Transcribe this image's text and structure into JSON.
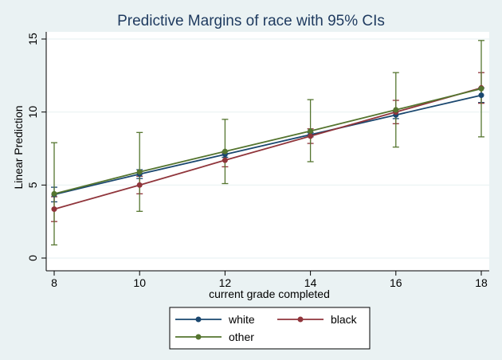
{
  "chart_data": {
    "type": "line",
    "title": "Predictive Margins of race with 95% CIs",
    "xlabel": "current grade completed",
    "ylabel": "Linear Prediction",
    "x": [
      8,
      10,
      12,
      14,
      16,
      18
    ],
    "x_ticks": [
      "8",
      "10",
      "12",
      "14",
      "16",
      "18"
    ],
    "y_ticks": [
      "0",
      "5",
      "10",
      "15"
    ],
    "xlim": [
      8,
      18
    ],
    "ylim": [
      0,
      15
    ],
    "grid": "horizontal",
    "legend_position": "bottom",
    "series": [
      {
        "name": "white",
        "color": "#1a476f",
        "values": [
          4.35,
          5.75,
          7.1,
          8.45,
          9.8,
          11.15
        ],
        "ci_low": [
          3.85,
          5.45,
          6.9,
          8.3,
          9.55,
          10.65
        ],
        "ci_high": [
          4.85,
          6.05,
          7.3,
          8.6,
          10.05,
          11.65
        ]
      },
      {
        "name": "black",
        "color": "#90353b",
        "values": [
          3.35,
          5.0,
          6.7,
          8.35,
          10.0,
          11.65
        ],
        "ci_low": [
          2.5,
          4.4,
          6.25,
          7.85,
          9.2,
          10.6
        ],
        "ci_high": [
          4.2,
          5.6,
          7.15,
          8.85,
          10.8,
          12.7
        ]
      },
      {
        "name": "other",
        "color": "#55752f",
        "values": [
          4.4,
          5.9,
          7.3,
          8.7,
          10.15,
          11.6
        ],
        "ci_low": [
          0.9,
          3.2,
          5.1,
          6.6,
          7.6,
          8.3
        ],
        "ci_high": [
          7.9,
          8.6,
          9.5,
          10.85,
          12.7,
          14.9
        ]
      }
    ]
  }
}
